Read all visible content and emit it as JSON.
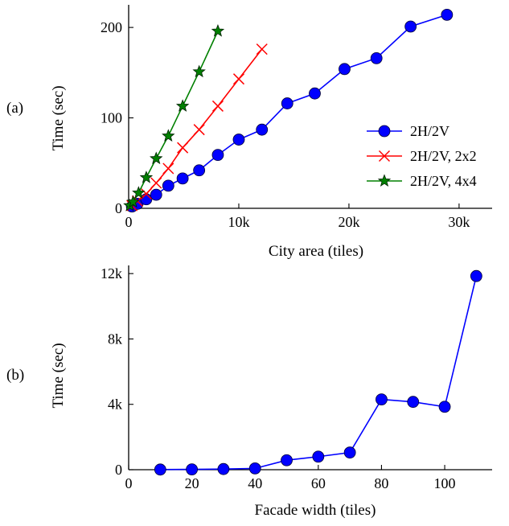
{
  "chart_data": [
    {
      "type": "line",
      "panel_label": "(a)",
      "xlabel": "City area (tiles)",
      "ylabel": "Time (sec)",
      "xlim": [
        0,
        33000
      ],
      "ylim": [
        0,
        225
      ],
      "xticks": [
        0,
        10000,
        20000,
        30000
      ],
      "xtick_labels": [
        "0",
        "10k",
        "20k",
        "30k"
      ],
      "yticks": [
        0,
        100,
        200
      ],
      "ytick_labels": [
        "0",
        "100",
        "200"
      ],
      "legend": "right",
      "series": [
        {
          "name": "2H/2V",
          "color": "#0000ff",
          "marker": "circle",
          "x": [
            300,
            800,
            1600,
            2500,
            3600,
            4900,
            6400,
            8100,
            10000,
            12100,
            14400,
            16900,
            19600,
            22500,
            25600,
            28900
          ],
          "y": [
            2,
            5,
            10,
            15,
            25,
            33,
            42,
            59,
            76,
            87,
            116,
            127,
            154,
            166,
            201,
            214
          ]
        },
        {
          "name": "2H/2V, 2x2",
          "color": "#ff0000",
          "marker": "x",
          "x": [
            300,
            800,
            1600,
            2500,
            3600,
            4900,
            6400,
            8100,
            10000,
            12100
          ],
          "y": [
            3,
            8,
            16,
            28,
            44,
            67,
            87,
            113,
            143,
            176
          ]
        },
        {
          "name": "2H/2V, 4x4",
          "color": "#008000",
          "marker": "star",
          "x": [
            100,
            400,
            900,
            1600,
            2500,
            3600,
            4900,
            6400,
            8100
          ],
          "y": [
            3,
            7,
            17,
            34,
            55,
            80,
            113,
            151,
            196
          ]
        }
      ]
    },
    {
      "type": "line",
      "panel_label": "(b)",
      "xlabel": "Facade width (tiles)",
      "ylabel": "Time (sec)",
      "xlim": [
        0,
        115
      ],
      "ylim": [
        0,
        12500
      ],
      "xticks": [
        0,
        20,
        40,
        60,
        80,
        100
      ],
      "xtick_labels": [
        "0",
        "20",
        "40",
        "60",
        "80",
        "100"
      ],
      "yticks": [
        0,
        4000,
        8000,
        12000
      ],
      "ytick_labels": [
        "0",
        "4k",
        "8k",
        "12k"
      ],
      "series": [
        {
          "name": "",
          "color": "#0000ff",
          "marker": "circle",
          "x": [
            10,
            20,
            30,
            40,
            50,
            60,
            70,
            80,
            90,
            100,
            110
          ],
          "y": [
            10,
            20,
            40,
            80,
            580,
            800,
            1050,
            4300,
            4150,
            3850,
            11850
          ]
        }
      ]
    }
  ]
}
